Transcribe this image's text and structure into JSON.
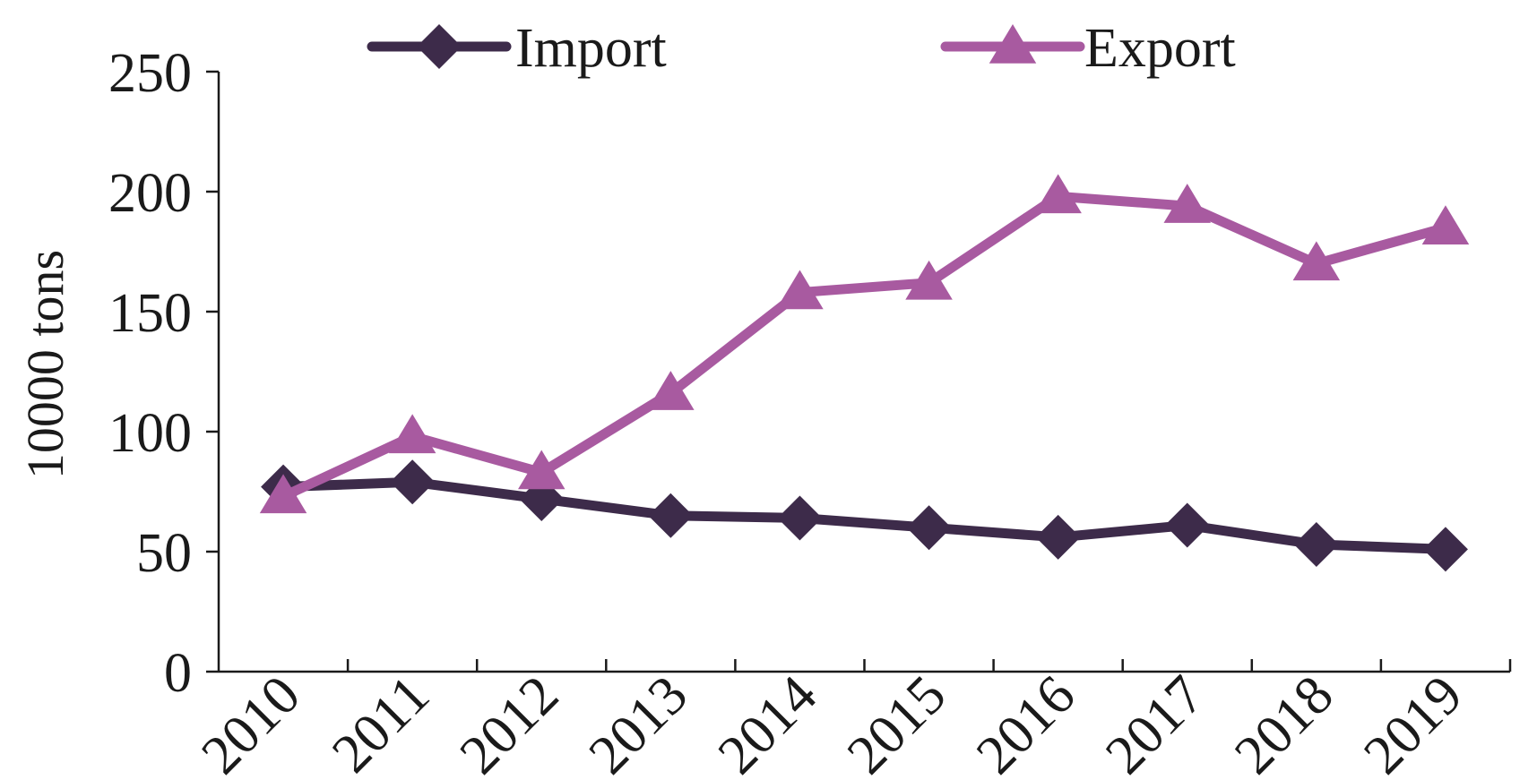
{
  "chart_data": {
    "type": "line",
    "title": "",
    "xlabel": "",
    "ylabel": "10000 tons",
    "ylim": [
      0,
      250
    ],
    "yticks": [
      "0",
      "50",
      "100",
      "150",
      "200",
      "250"
    ],
    "categories": [
      "2010",
      "2011",
      "2012",
      "2013",
      "2014",
      "2015",
      "2016",
      "2017",
      "2018",
      "2019"
    ],
    "legend_position": "top",
    "grid": false,
    "series": [
      {
        "name": "Import",
        "marker": "diamond",
        "color": "#3d2b4a",
        "values": [
          77,
          79,
          72,
          65,
          64,
          60,
          56,
          61,
          53,
          51
        ]
      },
      {
        "name": "Export",
        "marker": "triangle",
        "color": "#a85aa0",
        "values": [
          73,
          98,
          83,
          116,
          158,
          162,
          198,
          194,
          170,
          185
        ]
      }
    ]
  }
}
